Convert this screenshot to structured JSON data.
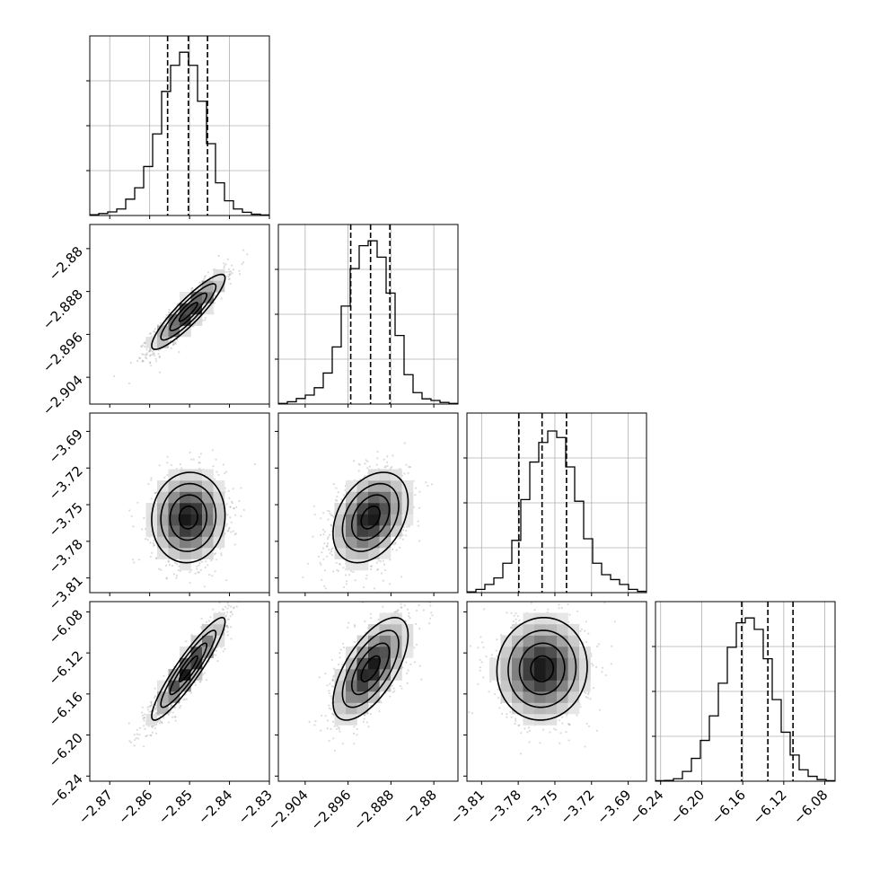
{
  "chart_data": {
    "type": "corner",
    "n_params": 4,
    "bins": 20,
    "grid": true,
    "params": [
      {
        "range": [
          -2.875,
          -2.83
        ],
        "ticks": [
          {
            "v": -2.87,
            "label": "−2.87"
          },
          {
            "v": -2.86,
            "label": "−2.86"
          },
          {
            "v": -2.85,
            "label": "−2.85"
          },
          {
            "v": -2.84,
            "label": "−2.84"
          },
          {
            "v": -2.83,
            "label": "−2.83"
          }
        ],
        "quantiles": [
          -2.8555,
          -2.8503,
          -2.8455
        ],
        "hist": [
          0.005,
          0.012,
          0.022,
          0.04,
          0.1,
          0.17,
          0.3,
          0.5,
          0.76,
          0.92,
          1.0,
          0.92,
          0.7,
          0.44,
          0.2,
          0.09,
          0.04,
          0.02,
          0.008,
          0.003
        ]
      },
      {
        "range": [
          -2.909,
          -2.8755
        ],
        "ticks": [
          {
            "v": -2.904,
            "label": "−2.904"
          },
          {
            "v": -2.896,
            "label": "−2.896"
          },
          {
            "v": -2.888,
            "label": "−2.888"
          },
          {
            "v": -2.88,
            "label": "−2.88"
          }
        ],
        "quantiles": [
          -2.8955,
          -2.8918,
          -2.8882
        ],
        "hist": [
          0.004,
          0.014,
          0.034,
          0.055,
          0.1,
          0.19,
          0.35,
          0.6,
          0.83,
          0.97,
          1.0,
          0.9,
          0.68,
          0.42,
          0.18,
          0.07,
          0.032,
          0.022,
          0.01,
          0.004
        ]
      },
      {
        "range": [
          -3.822,
          -3.675
        ],
        "ticks": [
          {
            "v": -3.81,
            "label": "−3.81"
          },
          {
            "v": -3.78,
            "label": "−3.78"
          },
          {
            "v": -3.75,
            "label": "−3.75"
          },
          {
            "v": -3.72,
            "label": "−3.72"
          },
          {
            "v": -3.69,
            "label": "−3.69"
          }
        ],
        "quantiles": [
          -3.7795,
          -3.7605,
          -3.7405
        ],
        "hist": [
          0.005,
          0.02,
          0.05,
          0.09,
          0.18,
          0.32,
          0.57,
          0.8,
          0.92,
          0.99,
          0.95,
          0.77,
          0.56,
          0.33,
          0.18,
          0.11,
          0.08,
          0.05,
          0.02,
          0.008
        ]
      },
      {
        "range": [
          -6.245,
          -6.07
        ],
        "ticks": [
          {
            "v": -6.24,
            "label": "−6.24"
          },
          {
            "v": -6.2,
            "label": "−6.20"
          },
          {
            "v": -6.16,
            "label": "−6.16"
          },
          {
            "v": -6.12,
            "label": "−6.12"
          },
          {
            "v": -6.08,
            "label": "−6.08"
          }
        ],
        "quantiles": [
          -6.161,
          -6.1355,
          -6.111
        ],
        "hist": [
          0.003,
          0.005,
          0.015,
          0.06,
          0.14,
          0.25,
          0.4,
          0.6,
          0.82,
          0.97,
          1.0,
          0.93,
          0.75,
          0.5,
          0.3,
          0.16,
          0.07,
          0.03,
          0.01,
          0.003
        ]
      }
    ],
    "means": [
      -2.8503,
      -2.8918,
      -3.7605,
      -6.1355
    ],
    "sds": [
      0.0046,
      0.0035,
      0.0185,
      0.025
    ],
    "correlations": [
      [
        1,
        0.9,
        0.05,
        0.92
      ],
      [
        0.9,
        1,
        0.35,
        0.65
      ],
      [
        0.05,
        0.35,
        1,
        0.04
      ],
      [
        0.92,
        0.65,
        0.04,
        1
      ]
    ]
  }
}
